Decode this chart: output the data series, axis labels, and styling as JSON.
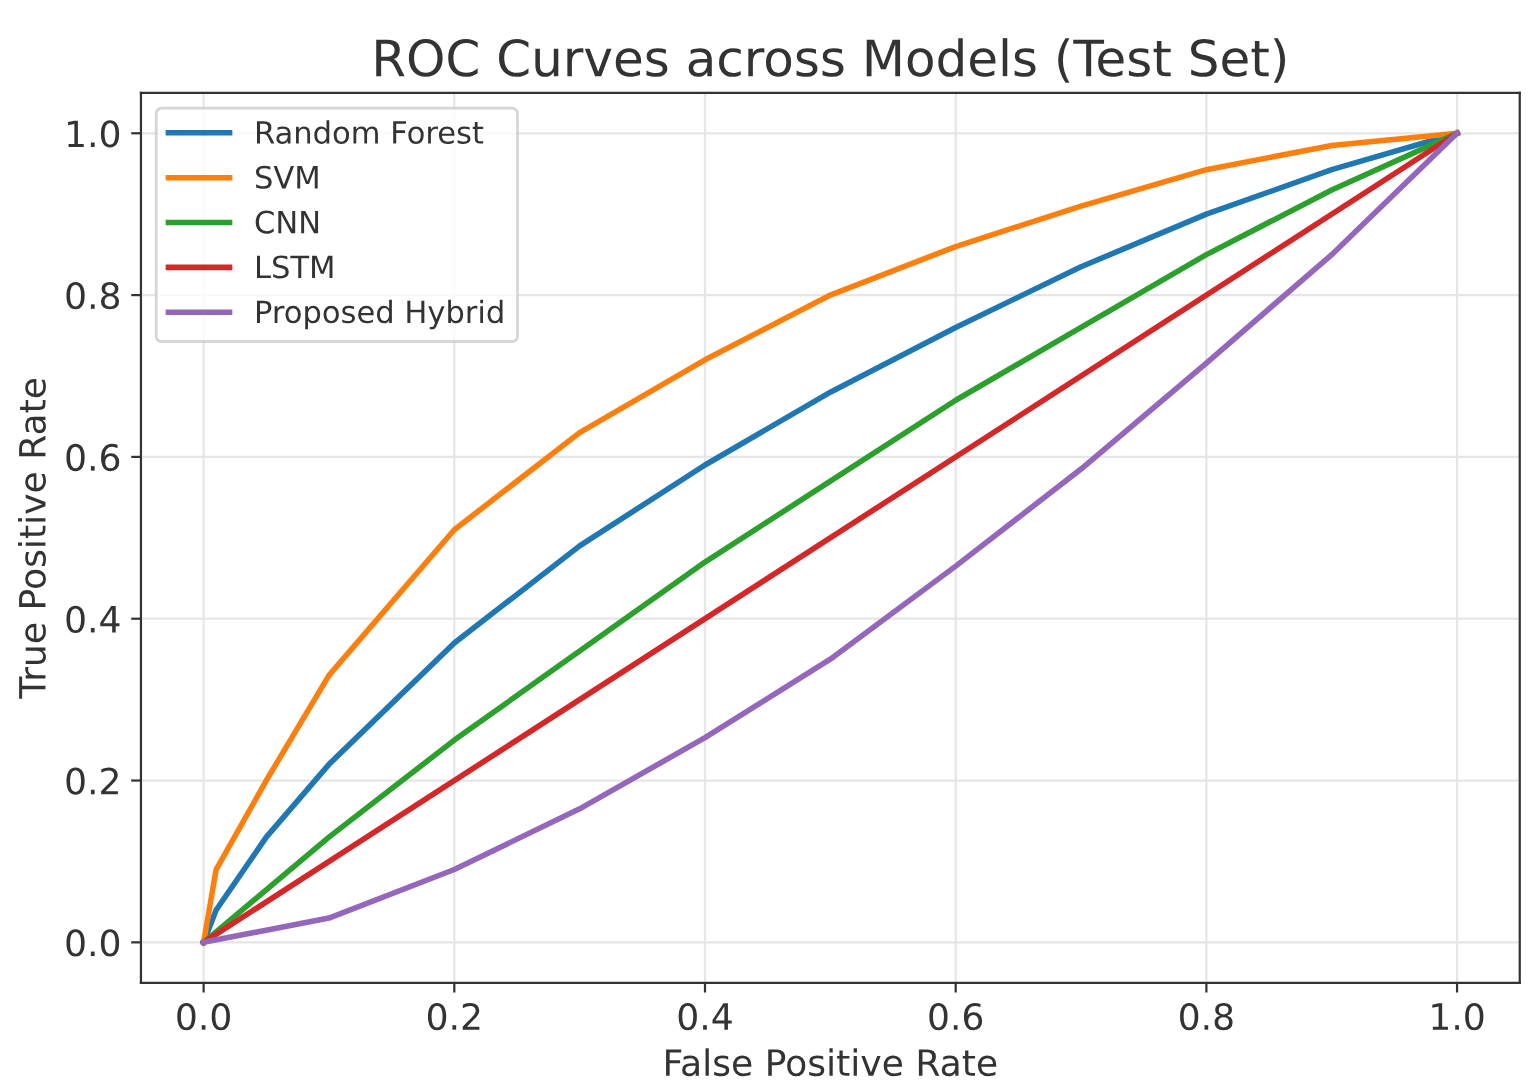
{
  "chart_data": {
    "type": "line",
    "title": "ROC Curves across Models (Test Set)",
    "xlabel": "False Positive Rate",
    "ylabel": "True Positive Rate",
    "series": [
      {
        "name": "Random Forest",
        "color": "#1f77b4",
        "x": [
          0,
          0.01,
          0.05,
          0.1,
          0.2,
          0.3,
          0.4,
          0.5,
          0.6,
          0.7,
          0.8,
          0.9,
          1
        ],
        "values": [
          0,
          0.04,
          0.13,
          0.22,
          0.37,
          0.49,
          0.59,
          0.68,
          0.76,
          0.835,
          0.9,
          0.955,
          1
        ]
      },
      {
        "name": "SVM",
        "color": "#ff7f0e",
        "x": [
          0,
          0.01,
          0.05,
          0.1,
          0.2,
          0.3,
          0.4,
          0.5,
          0.6,
          0.7,
          0.8,
          0.9,
          1
        ],
        "values": [
          0,
          0.09,
          0.2,
          0.33,
          0.51,
          0.63,
          0.72,
          0.8,
          0.86,
          0.91,
          0.955,
          0.985,
          1
        ]
      },
      {
        "name": "CNN",
        "color": "#2ca02c",
        "x": [
          0,
          0.1,
          0.2,
          0.3,
          0.4,
          0.5,
          0.6,
          0.7,
          0.8,
          0.9,
          1
        ],
        "values": [
          0,
          0.13,
          0.25,
          0.36,
          0.47,
          0.57,
          0.67,
          0.76,
          0.85,
          0.93,
          1
        ]
      },
      {
        "name": "LSTM",
        "color": "#d62728",
        "x": [
          0,
          1
        ],
        "values": [
          0,
          1
        ]
      },
      {
        "name": "Proposed Hybrid",
        "color": "#9467bd",
        "x": [
          0,
          0.1,
          0.2,
          0.3,
          0.4,
          0.5,
          0.6,
          0.7,
          0.8,
          0.9,
          1
        ],
        "values": [
          0,
          0.03,
          0.09,
          0.165,
          0.253,
          0.35,
          0.465,
          0.585,
          0.716,
          0.85,
          1
        ]
      }
    ],
    "xlim": [
      -0.05,
      1.05
    ],
    "ylim": [
      -0.05,
      1.05
    ],
    "xticks": [
      {
        "value": 0,
        "label": "0.0"
      },
      {
        "value": 0.2,
        "label": "0.2"
      },
      {
        "value": 0.4,
        "label": "0.4"
      },
      {
        "value": 0.6,
        "label": "0.6"
      },
      {
        "value": 0.8,
        "label": "0.8"
      },
      {
        "value": 1,
        "label": "1.0"
      }
    ],
    "yticks": [
      {
        "value": 0,
        "label": "0.0"
      },
      {
        "value": 0.2,
        "label": "0.2"
      },
      {
        "value": 0.4,
        "label": "0.4"
      },
      {
        "value": 0.6,
        "label": "0.6"
      },
      {
        "value": 0.8,
        "label": "0.8"
      },
      {
        "value": 1,
        "label": "1.0"
      }
    ],
    "grid": true,
    "legend": "top left"
  }
}
